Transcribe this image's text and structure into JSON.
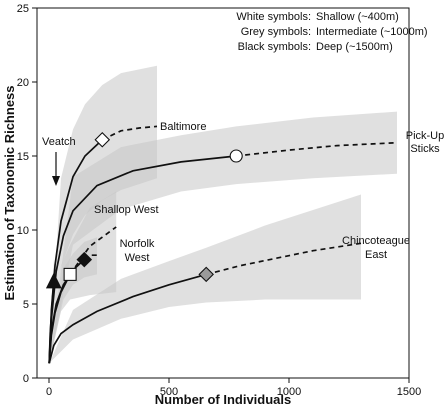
{
  "chart_data": {
    "type": "line",
    "title": "",
    "xlabel": "Number of Individuals",
    "ylabel": "Estimation of Taxonomic Richness",
    "xlim": [
      -50,
      1500
    ],
    "ylim": [
      0,
      25
    ],
    "xticks": [
      "0",
      "500",
      "1000",
      "1500"
    ],
    "yticks": [
      "0",
      "5",
      "10",
      "15",
      "20",
      "25"
    ],
    "grid": false,
    "legend_position": "top-right",
    "legend": [
      {
        "label": "White symbols:",
        "value": "Shallow (~400m)"
      },
      {
        "label": "Grey symbols:",
        "value": "Intermediate (~1000m)"
      },
      {
        "label": "Black symbols:",
        "value": "Deep (~1500m)"
      }
    ],
    "annotations": {
      "veatch": "Veatch",
      "baltimore": "Baltimore",
      "pickup_line1": "Pick-Up",
      "pickup_line2": "Sticks",
      "shallop": "Shallop West",
      "norfolk_line1": "Norfolk",
      "norfolk_line2": "West",
      "chinco_line1": "Chincoteague",
      "chinco_line2": "East"
    },
    "series": [
      {
        "name": "Baltimore",
        "symbol": "diamond",
        "fill": "#ffffff",
        "x_observed": 222,
        "y_observed": 16.1,
        "solid": [
          [
            1,
            1
          ],
          [
            10,
            4.6
          ],
          [
            25,
            7.6
          ],
          [
            50,
            10.6
          ],
          [
            100,
            13.6
          ],
          [
            150,
            15.0
          ],
          [
            222,
            16.1
          ]
        ],
        "dashed": [
          [
            222,
            16.1
          ],
          [
            300,
            16.7
          ],
          [
            380,
            16.9
          ],
          [
            450,
            17.0
          ]
        ],
        "band_lower": [
          [
            1,
            1
          ],
          [
            50,
            7.5
          ],
          [
            100,
            9.7
          ],
          [
            150,
            11.0
          ],
          [
            222,
            12.0
          ],
          [
            300,
            12.7
          ],
          [
            450,
            13.5
          ]
        ],
        "band_upper": [
          [
            1,
            1
          ],
          [
            50,
            13.5
          ],
          [
            100,
            16.8
          ],
          [
            150,
            18.5
          ],
          [
            222,
            19.8
          ],
          [
            300,
            20.6
          ],
          [
            450,
            21.1
          ]
        ]
      },
      {
        "name": "Pick-Up Sticks",
        "symbol": "circle",
        "fill": "#ffffff",
        "x_observed": 780,
        "y_observed": 15.0,
        "solid": [
          [
            1,
            1
          ],
          [
            10,
            4.0
          ],
          [
            30,
            7.2
          ],
          [
            60,
            9.6
          ],
          [
            100,
            11.3
          ],
          [
            200,
            13.0
          ],
          [
            350,
            14.0
          ],
          [
            550,
            14.6
          ],
          [
            780,
            15.0
          ]
        ],
        "dashed": [
          [
            780,
            15.0
          ],
          [
            1000,
            15.4
          ],
          [
            1200,
            15.7
          ],
          [
            1450,
            15.9
          ]
        ],
        "band_lower": [
          [
            1,
            1
          ],
          [
            100,
            9.0
          ],
          [
            300,
            11.4
          ],
          [
            550,
            12.6
          ],
          [
            780,
            13.1
          ],
          [
            1100,
            13.5
          ],
          [
            1450,
            13.8
          ]
        ],
        "band_upper": [
          [
            1,
            1
          ],
          [
            100,
            13.6
          ],
          [
            300,
            15.6
          ],
          [
            550,
            16.4
          ],
          [
            780,
            17.0
          ],
          [
            1100,
            17.6
          ],
          [
            1450,
            18.0
          ]
        ]
      },
      {
        "name": "Shallop West",
        "symbol": "square",
        "fill": "#ffffff",
        "x_observed": 88,
        "y_observed": 7.0,
        "solid": [
          [
            1,
            1
          ],
          [
            10,
            2.9
          ],
          [
            25,
            4.4
          ],
          [
            50,
            5.8
          ],
          [
            88,
            7.0
          ]
        ],
        "dashed": [
          [
            88,
            7.0
          ],
          [
            170,
            8.9
          ],
          [
            280,
            10.2
          ]
        ],
        "band_lower": [
          [
            1,
            1
          ],
          [
            50,
            4.5
          ],
          [
            88,
            5.3
          ],
          [
            170,
            5.6
          ],
          [
            280,
            5.8
          ]
        ],
        "band_upper": [
          [
            1,
            1
          ],
          [
            50,
            7.6
          ],
          [
            88,
            9.0
          ],
          [
            170,
            11.5
          ],
          [
            280,
            12.6
          ]
        ]
      },
      {
        "name": "Norfolk West",
        "symbol": "diamond",
        "fill": "#111111",
        "x_observed": 147,
        "y_observed": 8.0,
        "solid": [
          [
            1,
            1
          ],
          [
            10,
            3.2
          ],
          [
            30,
            5.0
          ],
          [
            60,
            6.3
          ],
          [
            100,
            7.3
          ],
          [
            147,
            8.0
          ]
        ],
        "dashed": [
          [
            147,
            8.0
          ],
          [
            170,
            8.3
          ],
          [
            200,
            8.3
          ]
        ],
        "band_lower": [
          [
            1,
            1
          ],
          [
            60,
            5.3
          ],
          [
            100,
            6.3
          ],
          [
            147,
            6.8
          ],
          [
            200,
            7.0
          ]
        ],
        "band_upper": [
          [
            1,
            1
          ],
          [
            60,
            7.4
          ],
          [
            100,
            8.4
          ],
          [
            147,
            9.2
          ],
          [
            200,
            9.5
          ]
        ]
      },
      {
        "name": "Chincoteague East",
        "symbol": "diamond",
        "fill": "#9a9a9a",
        "x_observed": 655,
        "y_observed": 7.0,
        "solid": [
          [
            1,
            1
          ],
          [
            20,
            2.2
          ],
          [
            50,
            3.0
          ],
          [
            100,
            3.6
          ],
          [
            200,
            4.5
          ],
          [
            350,
            5.5
          ],
          [
            500,
            6.3
          ],
          [
            655,
            7.0
          ]
        ],
        "dashed": [
          [
            655,
            7.0
          ],
          [
            800,
            7.6
          ],
          [
            950,
            8.1
          ],
          [
            1100,
            8.6
          ],
          [
            1300,
            9.1
          ]
        ],
        "band_lower": [
          [
            1,
            1
          ],
          [
            100,
            2.6
          ],
          [
            300,
            4.0
          ],
          [
            500,
            4.8
          ],
          [
            655,
            5.1
          ],
          [
            900,
            5.3
          ],
          [
            1300,
            5.3
          ]
        ],
        "band_upper": [
          [
            1,
            1
          ],
          [
            100,
            4.6
          ],
          [
            300,
            6.7
          ],
          [
            500,
            7.9
          ],
          [
            655,
            8.8
          ],
          [
            900,
            10.3
          ],
          [
            1300,
            12.4
          ]
        ]
      },
      {
        "name": "Veatch",
        "symbol": "triangle",
        "fill": "#111111",
        "x_observed": 20,
        "y_observed": 6.5,
        "solid": [
          [
            1,
            1
          ],
          [
            5,
            3.0
          ],
          [
            12,
            4.8
          ],
          [
            20,
            6.5
          ]
        ],
        "dashed": [],
        "band_lower": [
          [
            1,
            1
          ],
          [
            20,
            4.6
          ]
        ],
        "band_upper": [
          [
            1,
            1
          ],
          [
            20,
            8.2
          ]
        ]
      }
    ]
  }
}
